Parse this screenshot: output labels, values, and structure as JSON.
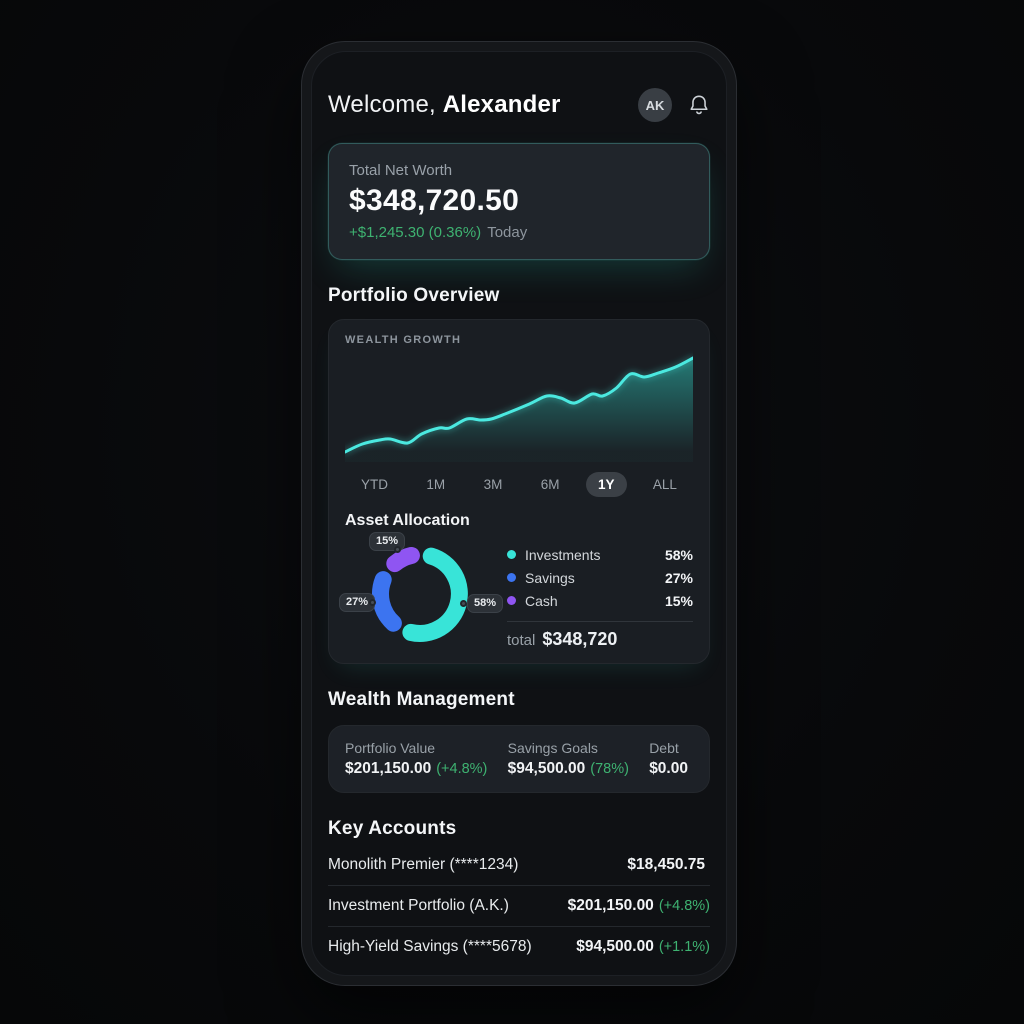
{
  "header": {
    "greeting": "Welcome,",
    "name": "Alexander",
    "avatar_initials": "AK"
  },
  "net_worth": {
    "label": "Total Net Worth",
    "value": "$348,720.50",
    "change": "+$1,245.30 (0.36%)",
    "period": "Today"
  },
  "portfolio": {
    "title": "Portfolio Overview",
    "chart_label": "WEALTH GROWTH",
    "ranges": [
      {
        "label": "YTD"
      },
      {
        "label": "1M"
      },
      {
        "label": "3M"
      },
      {
        "label": "6M"
      },
      {
        "label": "1Y"
      },
      {
        "label": "ALL"
      }
    ],
    "active_range": "1Y",
    "allocation_title": "Asset Allocation",
    "total_label": "total",
    "total_value": "$348,720"
  },
  "wealth": {
    "title": "Wealth Management",
    "stats": [
      {
        "label": "Portfolio Value",
        "value": "$201,150.00",
        "extra": "(+4.8%)"
      },
      {
        "label": "Savings Goals",
        "value": "$94,500.00",
        "extra": "(78%)"
      },
      {
        "label": "Debt",
        "value": "$0.00",
        "extra": ""
      }
    ]
  },
  "accounts": {
    "title": "Key Accounts",
    "rows": [
      {
        "name": "Monolith Premier (****1234)",
        "value": "$18,450.75",
        "extra": ""
      },
      {
        "name": "Investment Portfolio (A.K.)",
        "value": "$201,150.00",
        "extra": "(+4.8%)"
      },
      {
        "name": "High-Yield Savings (****5678)",
        "value": "$94,500.00",
        "extra": "(+1.1%)"
      }
    ]
  },
  "chart_data": [
    {
      "type": "area",
      "title": "WEALTH GROWTH",
      "xlabel": "",
      "ylabel": "",
      "axes_hidden": true,
      "grid": false,
      "x_range": [
        0,
        100
      ],
      "y_range": [
        0,
        100
      ],
      "x": [
        0,
        5,
        10,
        13,
        18,
        22,
        27,
        30,
        35,
        39,
        42,
        46,
        53,
        58,
        62,
        66,
        71,
        74,
        78,
        82,
        86,
        90,
        95,
        100
      ],
      "values": [
        4,
        12,
        16,
        17,
        13,
        22,
        28,
        28,
        37,
        36,
        37,
        42,
        52,
        60,
        58,
        53,
        62,
        60,
        68,
        82,
        79,
        83,
        89,
        98
      ],
      "line_color": "#4be9e0",
      "fill_color": "#2fd4c6"
    },
    {
      "type": "pie",
      "donut": true,
      "title": "Asset Allocation",
      "legend_position": "right",
      "segments": [
        {
          "label": "Investments",
          "value": 58,
          "pct_text": "58%",
          "color": "#38e4d8"
        },
        {
          "label": "Savings",
          "value": 27,
          "pct_text": "27%",
          "color": "#3c74f0"
        },
        {
          "label": "Cash",
          "value": 15,
          "pct_text": "15%",
          "color": "#8f55f2"
        }
      ],
      "total_label": "total",
      "total_value": "$348,720"
    }
  ],
  "colors": {
    "positive_green": "#3eb271",
    "accent_teal": "#4be9e0",
    "accent_blue": "#3c74f0",
    "accent_purple": "#8f55f2",
    "card_glow_teal": "#2dd4bf"
  }
}
